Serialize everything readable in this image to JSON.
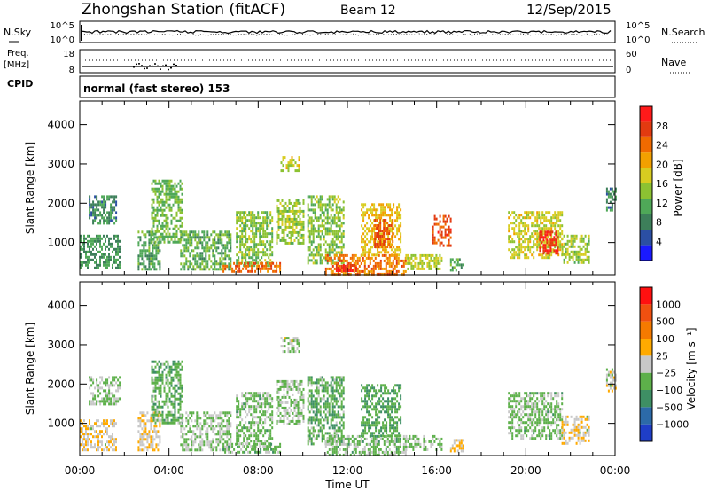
{
  "header": {
    "station": "Zhongshan Station (fitACF)",
    "beam": "Beam 12",
    "date": "12/Sep/2015"
  },
  "params": {
    "nsky_label": "N.Sky",
    "nsearch_label": "N.Search",
    "left_ticks": [
      "10^5",
      "10^0"
    ],
    "right_ticks": [
      "10^5",
      "10^0"
    ],
    "freq_label": [
      "Freq.",
      "[MHz]"
    ],
    "freq_ticks": [
      "18",
      "8"
    ],
    "nave_label": "Nave",
    "nave_ticks": [
      "60",
      "0"
    ],
    "cpid_label": "CPID",
    "cpid_value": "normal (fast stereo) 153"
  },
  "xaxis": {
    "label": "Time UT",
    "ticks": [
      "00:00",
      "04:00",
      "08:00",
      "12:00",
      "16:00",
      "20:00",
      "00:00"
    ]
  },
  "colors": {
    "power_scale": [
      "#1a1aff",
      "#2b4fa3",
      "#3d7f5a",
      "#4fa858",
      "#8cc232",
      "#d8cc20",
      "#f2a000",
      "#f06a00",
      "#e23a10",
      "#ff1a1a"
    ],
    "velocity_scale": [
      "#1f3ec7",
      "#2c6aa8",
      "#3e8f64",
      "#5db04a",
      "#c8c8c8",
      "#ffaa00",
      "#f57a00",
      "#f05010",
      "#ff1010"
    ]
  },
  "chart_data": [
    {
      "type": "heatmap",
      "title": "",
      "xlabel": "",
      "ylabel": "Slant Range [km]",
      "ylim": [
        180,
        4600
      ],
      "yticks": [
        "1000",
        "2000",
        "3000",
        "4000"
      ],
      "colorbar": {
        "label": "Power [dB]",
        "ticks": [
          "28",
          "24",
          "20",
          "16",
          "12",
          "8",
          "4"
        ],
        "range": [
          0,
          30
        ]
      },
      "patches": [
        {
          "t": [
            0.0,
            1.8
          ],
          "r": [
            350,
            1200
          ],
          "v": 9
        },
        {
          "t": [
            0.4,
            1.6
          ],
          "r": [
            1500,
            2200
          ],
          "v": 8
        },
        {
          "t": [
            2.6,
            3.6
          ],
          "r": [
            350,
            1300
          ],
          "v": 10
        },
        {
          "t": [
            3.2,
            4.6
          ],
          "r": [
            1000,
            2600
          ],
          "v": 12
        },
        {
          "t": [
            4.5,
            6.8
          ],
          "r": [
            300,
            1300
          ],
          "v": 11
        },
        {
          "t": [
            7.0,
            8.6
          ],
          "r": [
            400,
            1800
          ],
          "v": 13
        },
        {
          "t": [
            6.4,
            9.0
          ],
          "r": [
            250,
            500
          ],
          "v": 23
        },
        {
          "t": [
            8.8,
            10.0
          ],
          "r": [
            1000,
            2100
          ],
          "v": 14
        },
        {
          "t": [
            9.0,
            9.8
          ],
          "r": [
            2800,
            3200
          ],
          "v": 16
        },
        {
          "t": [
            10.2,
            11.8
          ],
          "r": [
            500,
            2200
          ],
          "v": 13
        },
        {
          "t": [
            11.0,
            14.6
          ],
          "r": [
            200,
            700
          ],
          "v": 22
        },
        {
          "t": [
            11.4,
            12.4
          ],
          "r": [
            250,
            450
          ],
          "v": 28
        },
        {
          "t": [
            12.6,
            14.4
          ],
          "r": [
            700,
            2000
          ],
          "v": 18
        },
        {
          "t": [
            13.2,
            14.0
          ],
          "r": [
            900,
            1600
          ],
          "v": 24
        },
        {
          "t": [
            14.6,
            16.2
          ],
          "r": [
            300,
            700
          ],
          "v": 15
        },
        {
          "t": [
            15.8,
            16.6
          ],
          "r": [
            900,
            1700
          ],
          "v": 25
        },
        {
          "t": [
            16.6,
            17.2
          ],
          "r": [
            300,
            600
          ],
          "v": 10
        },
        {
          "t": [
            19.2,
            21.6
          ],
          "r": [
            600,
            1800
          ],
          "v": 16
        },
        {
          "t": [
            20.6,
            21.4
          ],
          "r": [
            700,
            1300
          ],
          "v": 27
        },
        {
          "t": [
            21.6,
            22.8
          ],
          "r": [
            500,
            1200
          ],
          "v": 14
        },
        {
          "t": [
            23.6,
            24.0
          ],
          "r": [
            1800,
            2400
          ],
          "v": 8
        }
      ]
    },
    {
      "type": "heatmap",
      "title": "",
      "xlabel": "Time UT",
      "ylabel": "Slant Range [km]",
      "ylim": [
        180,
        4600
      ],
      "yticks": [
        "1000",
        "2000",
        "3000",
        "4000"
      ],
      "colorbar": {
        "label": "Velocity [m s⁻¹]",
        "ticks": [
          "1000",
          "500",
          "100",
          "25",
          "−25",
          "−100",
          "−500",
          "−1000"
        ],
        "range": [
          -1200,
          1200
        ]
      },
      "patches": [
        {
          "t": [
            0.0,
            1.6
          ],
          "r": [
            350,
            1100
          ],
          "v": 80
        },
        {
          "t": [
            0.4,
            1.8
          ],
          "r": [
            1500,
            2200
          ],
          "v": -150
        },
        {
          "t": [
            2.6,
            3.6
          ],
          "r": [
            350,
            1300
          ],
          "v": 80
        },
        {
          "t": [
            3.2,
            4.6
          ],
          "r": [
            1000,
            2600
          ],
          "v": -300
        },
        {
          "t": [
            4.5,
            6.8
          ],
          "r": [
            300,
            1300
          ],
          "v": -120
        },
        {
          "t": [
            7.0,
            8.6
          ],
          "r": [
            400,
            1800
          ],
          "v": -200
        },
        {
          "t": [
            6.4,
            9.0
          ],
          "r": [
            250,
            500
          ],
          "v": -250
        },
        {
          "t": [
            8.8,
            10.0
          ],
          "r": [
            1000,
            2100
          ],
          "v": -150
        },
        {
          "t": [
            9.0,
            9.8
          ],
          "r": [
            2800,
            3200
          ],
          "v": -60
        },
        {
          "t": [
            10.2,
            11.8
          ],
          "r": [
            500,
            2200
          ],
          "v": -300
        },
        {
          "t": [
            11.0,
            14.6
          ],
          "r": [
            200,
            700
          ],
          "v": -200
        },
        {
          "t": [
            12.6,
            14.4
          ],
          "r": [
            700,
            2000
          ],
          "v": -350
        },
        {
          "t": [
            14.6,
            16.2
          ],
          "r": [
            300,
            700
          ],
          "v": -180
        },
        {
          "t": [
            16.6,
            17.2
          ],
          "r": [
            300,
            600
          ],
          "v": 80
        },
        {
          "t": [
            19.2,
            21.6
          ],
          "r": [
            600,
            1800
          ],
          "v": -200
        },
        {
          "t": [
            21.6,
            22.8
          ],
          "r": [
            500,
            1200
          ],
          "v": 60
        },
        {
          "t": [
            23.6,
            24.0
          ],
          "r": [
            1800,
            2400
          ],
          "v": 0
        }
      ]
    }
  ]
}
